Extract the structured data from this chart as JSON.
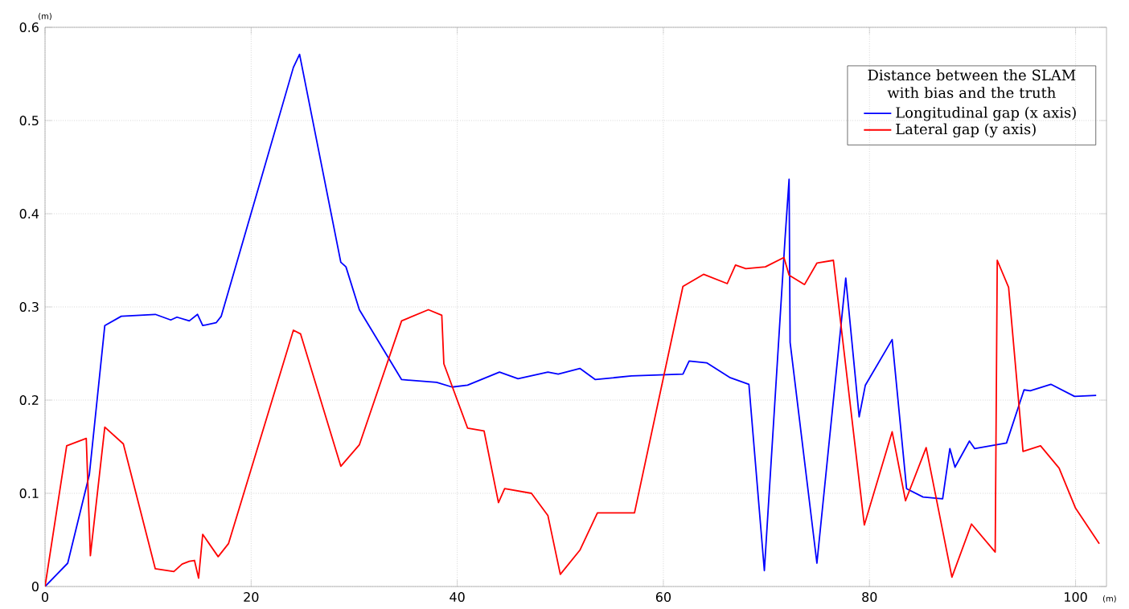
{
  "chart_data": {
    "type": "line",
    "xlabel": "(m)",
    "ylabel": "(m)",
    "legend_title": "Distance between the SLAM with bias and the truth",
    "xlim": [
      0,
      103
    ],
    "ylim": [
      0,
      0.6
    ],
    "xticks": [
      0,
      20,
      40,
      60,
      80,
      100
    ],
    "yticks": [
      0,
      0.1,
      0.2,
      0.3,
      0.4,
      0.5,
      0.6
    ],
    "grid": true,
    "legend": "top right",
    "line_style": "solid",
    "marker": "none",
    "series": [
      {
        "name": "Longitudinal gap (x axis)",
        "color": "#0000ff",
        "x": [
          0,
          2.2,
          4.3,
          5.8,
          7.4,
          10.7,
          12.2,
          12.8,
          14,
          14.8,
          15.3,
          16.6,
          17.1,
          24.1,
          24.7,
          28.7,
          29.2,
          30.5,
          34.6,
          38,
          39.5,
          41,
          44.1,
          45.9,
          48.8,
          49.8,
          51.9,
          53.4,
          56.9,
          61.9,
          62.5,
          64.2,
          66.5,
          68.3,
          69.8,
          71.8,
          72.2,
          72.3,
          74.9,
          77.7,
          79,
          79.6,
          82.2,
          83.6,
          85.2,
          87.1,
          87.8,
          88.3,
          89.7,
          90.2,
          93.3,
          95,
          95.6,
          97.6,
          99.9,
          102
        ],
        "values": [
          0,
          0.025,
          0.12,
          0.28,
          0.29,
          0.292,
          0.286,
          0.289,
          0.285,
          0.292,
          0.28,
          0.283,
          0.29,
          0.557,
          0.571,
          0.348,
          0.343,
          0.297,
          0.222,
          0.219,
          0.214,
          0.216,
          0.23,
          0.223,
          0.23,
          0.228,
          0.234,
          0.222,
          0.226,
          0.228,
          0.242,
          0.24,
          0.224,
          0.217,
          0.017,
          0.372,
          0.437,
          0.262,
          0.025,
          0.331,
          0.182,
          0.216,
          0.265,
          0.105,
          0.096,
          0.094,
          0.148,
          0.128,
          0.156,
          0.148,
          0.154,
          0.211,
          0.21,
          0.217,
          0.204,
          0.205
        ]
      },
      {
        "name": "Lateral gap (y axis)",
        "color": "#ff0000",
        "x": [
          0,
          2.1,
          4,
          4.4,
          5.8,
          7.6,
          10.7,
          12.5,
          13.3,
          14,
          14.5,
          14.9,
          15.3,
          16.8,
          17.8,
          24.1,
          24.8,
          28.7,
          30.5,
          34.6,
          37.2,
          38.5,
          38.7,
          41,
          42.6,
          44,
          44.6,
          47.2,
          48.8,
          50,
          51.9,
          53.6,
          57.2,
          61.9,
          63.9,
          66.2,
          67,
          68,
          69.9,
          71.7,
          72.2,
          73.7,
          74.9,
          76.5,
          79.5,
          82.2,
          83.5,
          85.5,
          88,
          89.9,
          92.2,
          92.4,
          93.5,
          94.9,
          96.6,
          98.4,
          100,
          102.3
        ],
        "values": [
          0,
          0.151,
          0.159,
          0.033,
          0.171,
          0.153,
          0.019,
          0.016,
          0.024,
          0.027,
          0.028,
          0.009,
          0.056,
          0.032,
          0.046,
          0.275,
          0.271,
          0.129,
          0.152,
          0.285,
          0.297,
          0.291,
          0.239,
          0.17,
          0.167,
          0.09,
          0.105,
          0.1,
          0.076,
          0.013,
          0.039,
          0.079,
          0.079,
          0.322,
          0.335,
          0.325,
          0.345,
          0.341,
          0.343,
          0.353,
          0.334,
          0.324,
          0.347,
          0.35,
          0.066,
          0.166,
          0.092,
          0.149,
          0.01,
          0.067,
          0.037,
          0.35,
          0.321,
          0.145,
          0.151,
          0.127,
          0.084,
          0.046
        ]
      }
    ]
  }
}
